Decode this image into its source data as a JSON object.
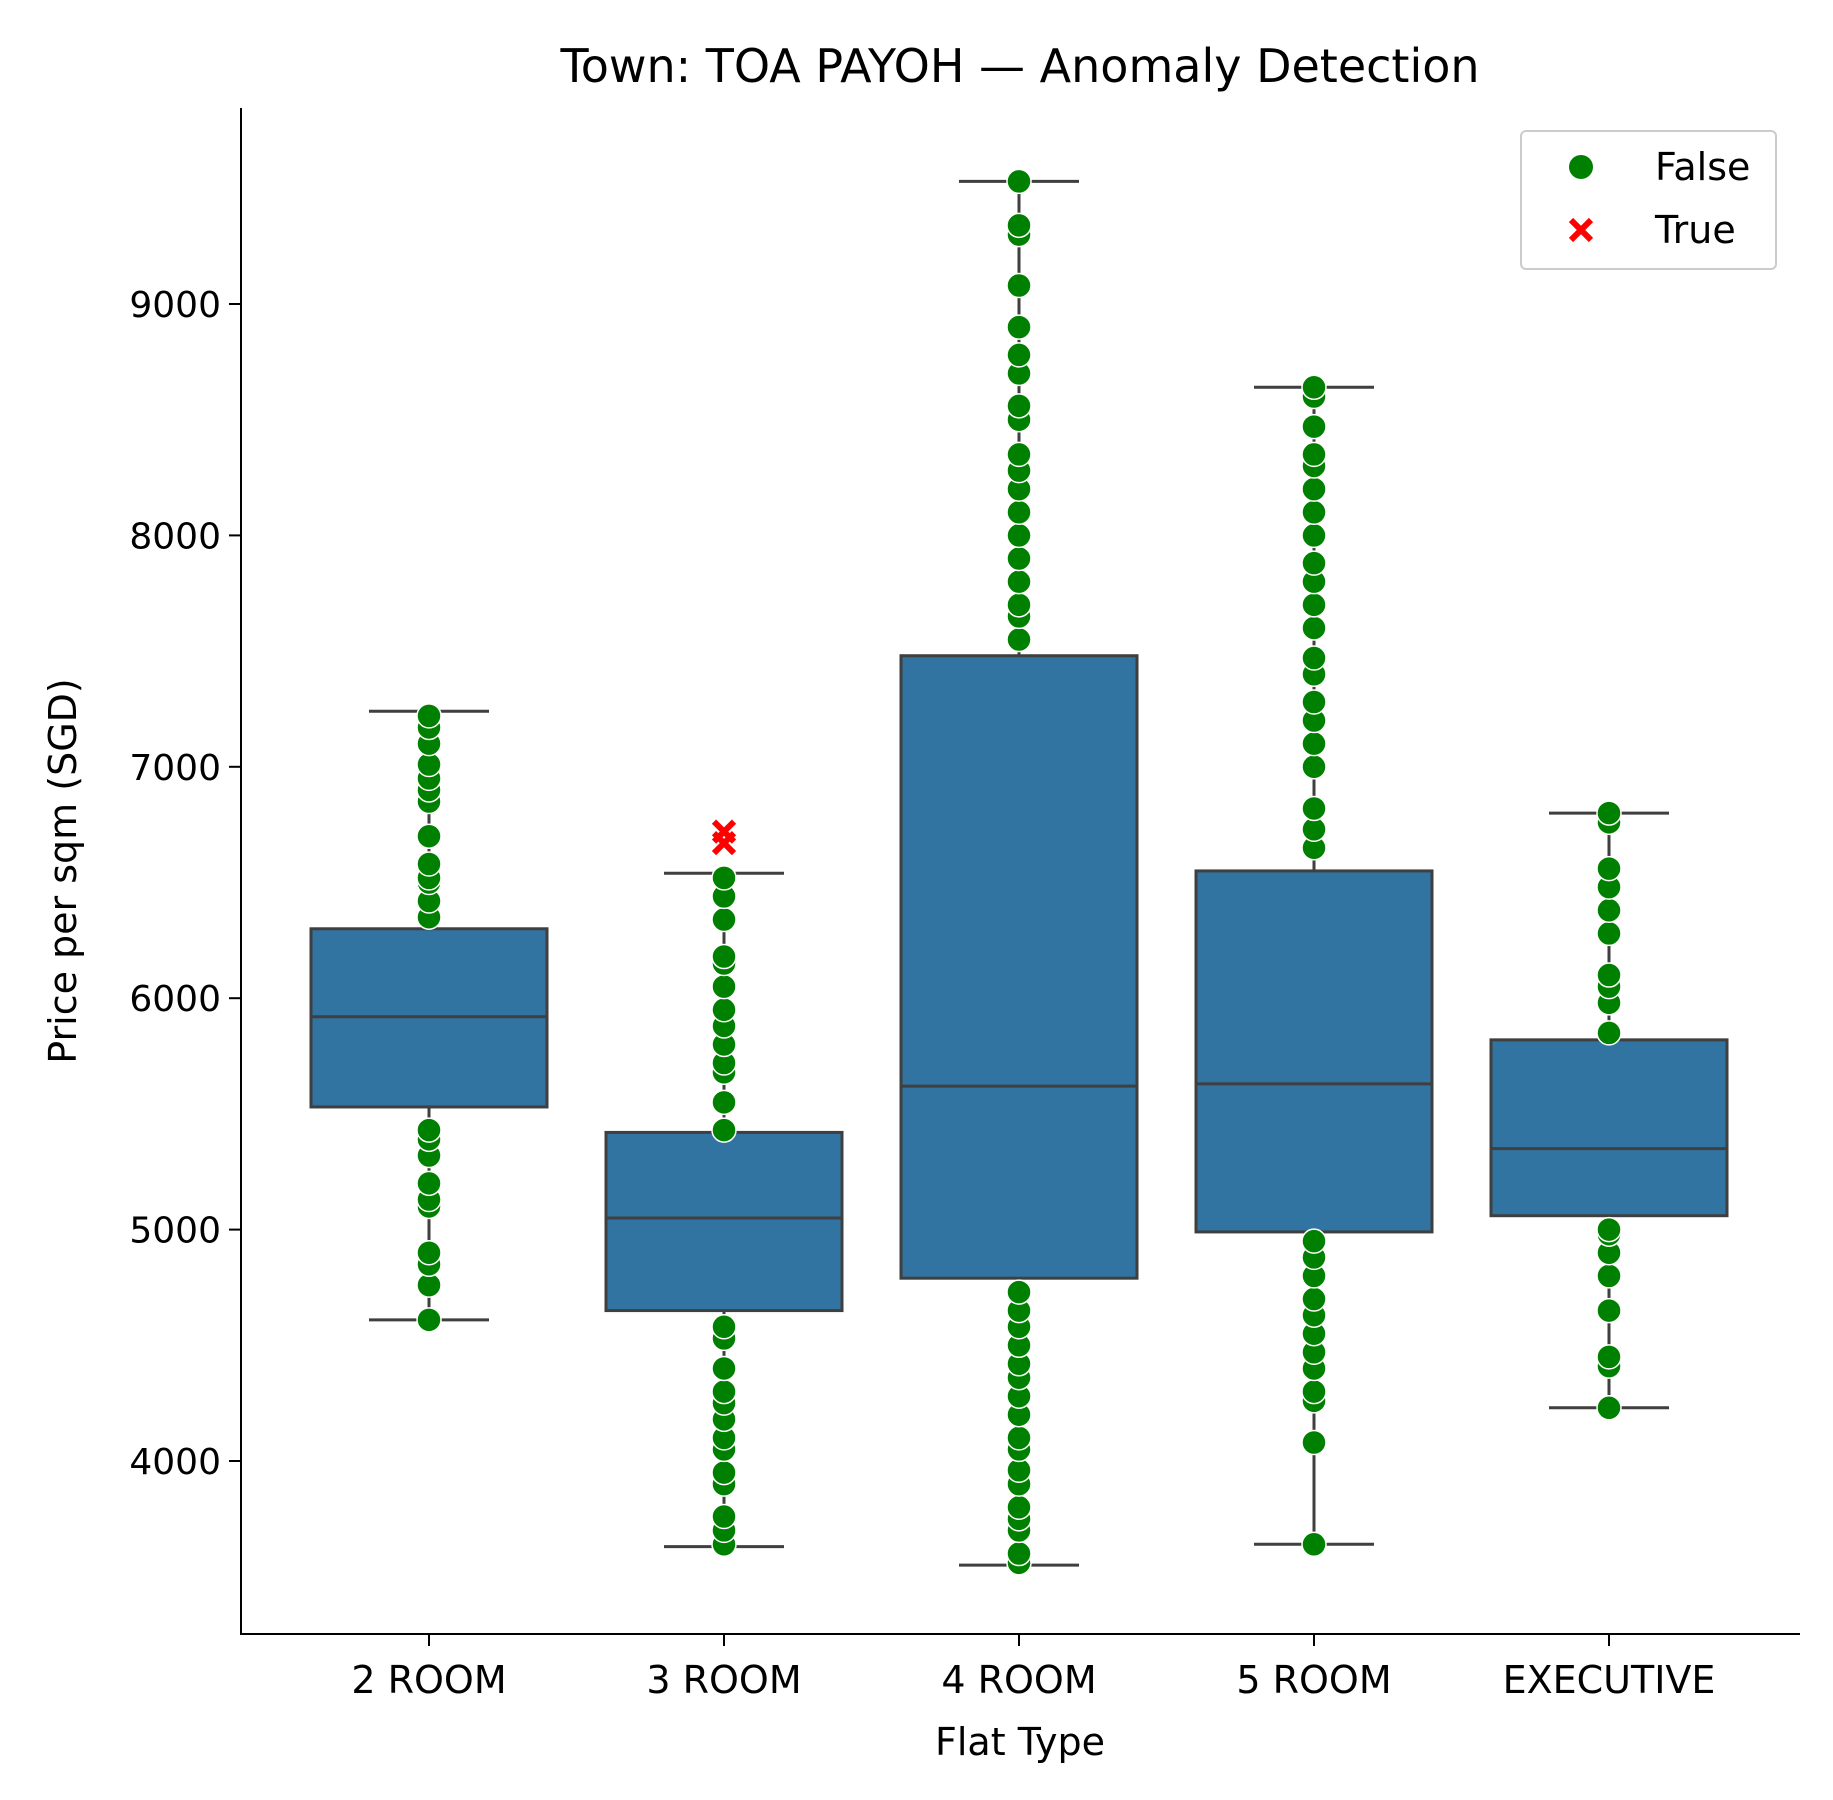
{
  "chart_data": {
    "type": "box",
    "title": "Town: TOA PAYOH — Anomaly Detection",
    "xlabel": "Flat Type",
    "ylabel": "Price per sqm (SGD)",
    "ylim": [
      3250,
      9850
    ],
    "y_ticks": [
      4000,
      5000,
      6000,
      7000,
      8000,
      9000
    ],
    "categories": [
      "2 ROOM",
      "3 ROOM",
      "4 ROOM",
      "5 ROOM",
      "EXECUTIVE"
    ],
    "boxes": [
      {
        "category": "2 ROOM",
        "whisker_low": 4610,
        "q1": 5530,
        "median": 5920,
        "q3": 6300,
        "whisker_high": 7240
      },
      {
        "category": "3 ROOM",
        "whisker_low": 3630,
        "q1": 4650,
        "median": 5050,
        "q3": 5420,
        "whisker_high": 6540
      },
      {
        "category": "4 ROOM",
        "whisker_low": 3550,
        "q1": 4790,
        "median": 5620,
        "q3": 7480,
        "whisker_high": 9530
      },
      {
        "category": "5 ROOM",
        "whisker_low": 3640,
        "q1": 4990,
        "median": 5630,
        "q3": 6550,
        "whisker_high": 8640
      },
      {
        "category": "EXECUTIVE",
        "whisker_low": 4230,
        "q1": 5060,
        "median": 5350,
        "q3": 5820,
        "whisker_high": 6800
      }
    ],
    "points": {
      "False": [
        {
          "category": "2 ROOM",
          "values": [
            4610,
            4760,
            4850,
            4900,
            5100,
            5130,
            5200,
            5320,
            5390,
            5430,
            6350,
            6420,
            6500,
            6520,
            6580,
            6700,
            6850,
            6900,
            6950,
            7010,
            7100,
            7170,
            7220
          ]
        },
        {
          "category": "3 ROOM",
          "values": [
            3640,
            3700,
            3760,
            3900,
            3950,
            4050,
            4100,
            4180,
            4250,
            4300,
            4400,
            4530,
            4580,
            5430,
            5550,
            5680,
            5720,
            5800,
            5880,
            5950,
            6050,
            6150,
            6180,
            6340,
            6440,
            6520
          ]
        },
        {
          "category": "4 ROOM",
          "values": [
            3560,
            3600,
            3700,
            3750,
            3800,
            3900,
            3960,
            4050,
            4100,
            4200,
            4280,
            4360,
            4420,
            4500,
            4580,
            4650,
            4730,
            7550,
            7650,
            7700,
            7800,
            7900,
            8000,
            8100,
            8200,
            8280,
            8350,
            8500,
            8560,
            8700,
            8780,
            8900,
            9080,
            9300,
            9340,
            9530
          ]
        },
        {
          "category": "5 ROOM",
          "values": [
            3640,
            4080,
            4260,
            4300,
            4400,
            4470,
            4550,
            4630,
            4700,
            4800,
            4880,
            4950,
            6650,
            6730,
            6820,
            7000,
            7100,
            7200,
            7280,
            7400,
            7470,
            7600,
            7700,
            7800,
            7880,
            8000,
            8100,
            8200,
            8300,
            8350,
            8470,
            8600,
            8640
          ]
        },
        {
          "category": "EXECUTIVE",
          "values": [
            4230,
            4410,
            4450,
            4650,
            4800,
            4900,
            4980,
            5000,
            5850,
            5980,
            6050,
            6100,
            6280,
            6380,
            6480,
            6560,
            6760,
            6800
          ]
        }
      ],
      "True": [
        {
          "category": "3 ROOM",
          "values": [
            6670,
            6720
          ]
        }
      ]
    },
    "legend": {
      "position": "top-right",
      "entries": [
        {
          "label": "False",
          "marker": "circle"
        },
        {
          "label": "True",
          "marker": "x"
        }
      ]
    },
    "colors": {
      "box_fill": "#3274a1",
      "box_edge": "#3f3f3f",
      "normal_point": "#008000",
      "anomaly_point": "#ff0000",
      "axis": "#000000"
    }
  }
}
